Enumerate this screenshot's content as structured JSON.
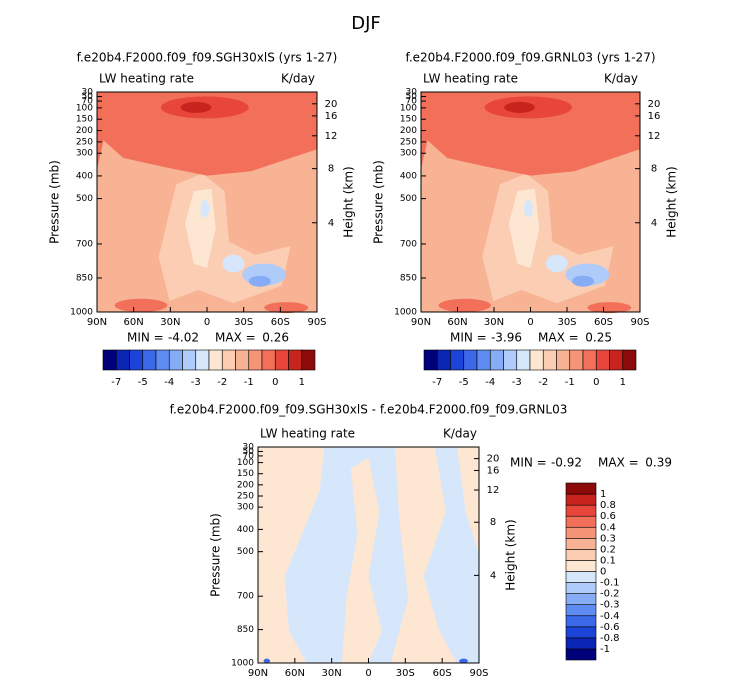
{
  "title": "DJF",
  "chart_data": [
    {
      "type": "contour",
      "title": "f.e20b4.F2000.f09_f09.SGH30xlS (yrs 1-27)",
      "left_label": "LW heating rate",
      "right_label": "K/day",
      "ylabel": "Pressure (mb)",
      "y2label": "Height (km)",
      "xlim": [
        90,
        -90
      ],
      "xticks": [
        {
          "value": 90,
          "label": "90N"
        },
        {
          "value": 60,
          "label": "60N"
        },
        {
          "value": 30,
          "label": "30N"
        },
        0,
        {
          "value": -30,
          "label": "30S"
        },
        {
          "value": -60,
          "label": "60S"
        },
        {
          "value": -90,
          "label": "90S"
        }
      ],
      "ylim": [
        1000,
        30
      ],
      "yticks": [
        30,
        50,
        70,
        100,
        150,
        200,
        250,
        300,
        400,
        500,
        700,
        850,
        1000
      ],
      "y2ticks": [
        4,
        8,
        12,
        16,
        20
      ],
      "min_label": "MIN =",
      "min": -4.02,
      "max_label": "MAX =",
      "max": 0.26,
      "colorbar": {
        "orientation": "horizontal",
        "labels": [
          -7,
          -5,
          -4,
          -3,
          -2,
          -1,
          0,
          1
        ],
        "colors": [
          "#00007a",
          "#0a24b4",
          "#1c44d8",
          "#3c68ea",
          "#5f8cf2",
          "#86acf6",
          "#aecbf9",
          "#d6e6fb",
          "#fde7d3",
          "#fbcdb2",
          "#f8b294",
          "#f59476",
          "#f2705a",
          "#e8463a",
          "#c8241e",
          "#8c0a0a"
        ]
      }
    },
    {
      "type": "contour",
      "title": "f.e20b4.F2000.f09_f09.GRNL03 (yrs 1-27)",
      "left_label": "LW heating rate",
      "right_label": "K/day",
      "ylabel": "Pressure (mb)",
      "y2label": "Height (km)",
      "xlim": [
        90,
        -90
      ],
      "xticks": [
        {
          "value": 90,
          "label": "90N"
        },
        {
          "value": 60,
          "label": "60N"
        },
        {
          "value": 30,
          "label": "30N"
        },
        0,
        {
          "value": -30,
          "label": "30S"
        },
        {
          "value": -60,
          "label": "60S"
        },
        {
          "value": -90,
          "label": "90S"
        }
      ],
      "ylim": [
        1000,
        30
      ],
      "yticks": [
        30,
        50,
        70,
        100,
        150,
        200,
        250,
        300,
        400,
        500,
        700,
        850,
        1000
      ],
      "y2ticks": [
        4,
        8,
        12,
        16,
        20
      ],
      "min_label": "MIN =",
      "min": -3.96,
      "max_label": "MAX =",
      "max": 0.25,
      "colorbar": {
        "orientation": "horizontal",
        "labels": [
          -7,
          -5,
          -4,
          -3,
          -2,
          -1,
          0,
          1
        ],
        "colors": [
          "#00007a",
          "#0a24b4",
          "#1c44d8",
          "#3c68ea",
          "#5f8cf2",
          "#86acf6",
          "#aecbf9",
          "#d6e6fb",
          "#fde7d3",
          "#fbcdb2",
          "#f8b294",
          "#f59476",
          "#f2705a",
          "#e8463a",
          "#c8241e",
          "#8c0a0a"
        ]
      }
    },
    {
      "type": "contour",
      "title": "f.e20b4.F2000.f09_f09.SGH30xlS - f.e20b4.F2000.f09_f09.GRNL03",
      "left_label": "LW heating rate",
      "right_label": "K/day",
      "ylabel": "Pressure (mb)",
      "y2label": "Height (km)",
      "xlim": [
        90,
        -90
      ],
      "xticks": [
        {
          "value": 90,
          "label": "90N"
        },
        {
          "value": 60,
          "label": "60N"
        },
        {
          "value": 30,
          "label": "30N"
        },
        0,
        {
          "value": -30,
          "label": "30S"
        },
        {
          "value": -60,
          "label": "60S"
        },
        {
          "value": -90,
          "label": "90S"
        }
      ],
      "ylim": [
        1000,
        30
      ],
      "yticks": [
        30,
        50,
        70,
        100,
        150,
        200,
        250,
        300,
        400,
        500,
        700,
        850,
        1000
      ],
      "y2ticks": [
        4,
        8,
        12,
        16,
        20
      ],
      "min_label": "MIN =",
      "min": -0.92,
      "max_label": "MAX =",
      "max": 0.39,
      "colorbar": {
        "orientation": "vertical",
        "labels": [
          -1,
          -0.8,
          -0.6,
          -0.4,
          -0.3,
          -0.2,
          -0.1,
          0,
          0.1,
          0.2,
          0.3,
          0.4,
          0.6,
          0.8,
          1
        ],
        "colors": [
          "#00007a",
          "#0a24b4",
          "#1c44d8",
          "#3c68ea",
          "#5f8cf2",
          "#86acf6",
          "#aecbf9",
          "#d6e6fb",
          "#fde7d3",
          "#fbcdb2",
          "#f8b294",
          "#f59476",
          "#f2705a",
          "#e8463a",
          "#c8241e",
          "#8c0a0a"
        ]
      }
    }
  ]
}
